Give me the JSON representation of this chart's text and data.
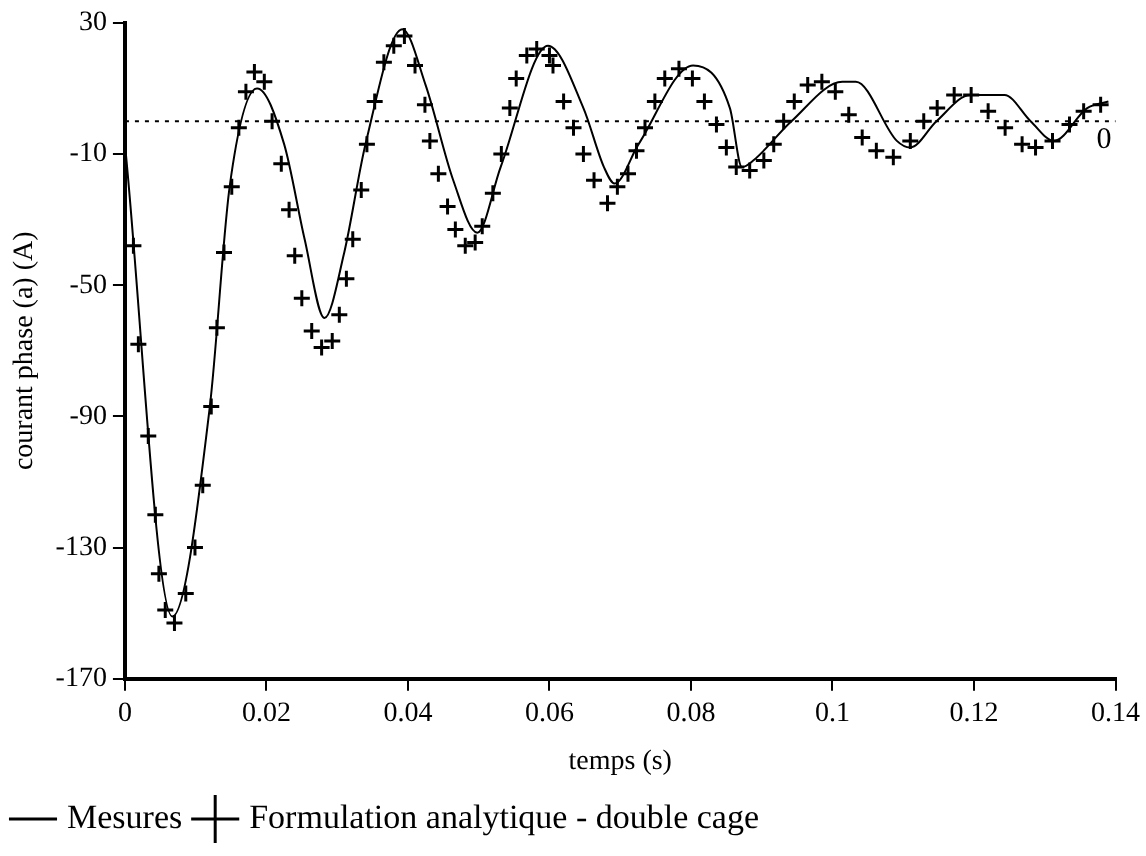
{
  "chart_data": {
    "type": "line",
    "xlabel": "temps (s)",
    "ylabel": "courant phase (a) (A)",
    "xlim": [
      0,
      0.14
    ],
    "xticks": [
      0,
      0.02,
      0.04,
      0.06,
      0.08,
      {
        "value": 0.1,
        "label": "0.1"
      },
      0.12,
      0.14
    ],
    "ylim": [
      -170,
      30
    ],
    "yticks": [
      30,
      -10,
      -50,
      -90,
      -130,
      -170
    ],
    "grid": false,
    "legend": "bottom",
    "ref_lines": [
      {
        "axis": "y",
        "value": 0,
        "label": "0",
        "line_style": "dotted"
      }
    ],
    "series": [
      {
        "name": "Mesures",
        "color": "#000000",
        "marker": "none",
        "line_style": "solid",
        "x": [
          0,
          0.0067,
          0.012,
          0.0148,
          0.0187,
          0.0225,
          0.0254,
          0.0282,
          0.031,
          0.034,
          0.0392,
          0.0425,
          0.0464,
          0.0498,
          0.0531,
          0.0598,
          0.0648,
          0.0677,
          0.0692,
          0.0726,
          0.0803,
          0.0855,
          0.0872,
          0.0888,
          0.0942,
          0.1014,
          0.1033,
          0.1091,
          0.111,
          0.1147,
          0.1195,
          0.1243,
          0.128,
          0.1313,
          0.136,
          0.139
        ],
        "values": [
          -7,
          -151,
          -87,
          -20,
          10,
          -7,
          -36,
          -60,
          -40,
          -7,
          28,
          11,
          -18,
          -34,
          -14,
          23,
          4,
          -14,
          -19,
          -7,
          17,
          4,
          -14,
          -12,
          0,
          12,
          12,
          -6,
          -8,
          0,
          8,
          8,
          0,
          -6,
          4,
          6
        ]
      },
      {
        "name": "Formulation analytique - double cage",
        "type": "scatter",
        "color": "#000000",
        "marker": "cross",
        "x": [
          0.0012,
          0.0019,
          0.0033,
          0.0043,
          0.0048,
          0.0057,
          0.007,
          0.0086,
          0.0099,
          0.011,
          0.0122,
          0.013,
          0.014,
          0.0151,
          0.0161,
          0.0171,
          0.0183,
          0.0197,
          0.0208,
          0.0221,
          0.0232,
          0.024,
          0.025,
          0.0264,
          0.0278,
          0.0293,
          0.0303,
          0.0313,
          0.0322,
          0.0334,
          0.0342,
          0.0353,
          0.0366,
          0.038,
          0.0395,
          0.041,
          0.0424,
          0.0431,
          0.0443,
          0.0456,
          0.0467,
          0.0481,
          0.0495,
          0.0505,
          0.052,
          0.0532,
          0.0544,
          0.0553,
          0.0568,
          0.0582,
          0.06,
          0.0605,
          0.062,
          0.0634,
          0.0648,
          0.0663,
          0.0682,
          0.0696,
          0.0711,
          0.0723,
          0.0735,
          0.0749,
          0.0763,
          0.0783,
          0.0802,
          0.0819,
          0.0836,
          0.085,
          0.0864,
          0.0883,
          0.0903,
          0.0917,
          0.0931,
          0.0946,
          0.0965,
          0.0985,
          0.1004,
          0.1023,
          0.1042,
          0.1062,
          0.1086,
          0.111,
          0.1129,
          0.1148,
          0.1172,
          0.1196,
          0.122,
          0.1244,
          0.1268,
          0.1287,
          0.1311,
          0.1335,
          0.1355,
          0.1379
        ],
        "values": [
          -38,
          -68,
          -96,
          -120,
          -138,
          -149,
          -153,
          -144,
          -130,
          -111,
          -87,
          -63,
          -40,
          -20,
          -2,
          9,
          15,
          12,
          0,
          -13,
          -27,
          -41,
          -54,
          -64,
          -69,
          -67,
          -59,
          -48,
          -36,
          -21,
          -7,
          6,
          18,
          23,
          26,
          17,
          5,
          -6,
          -16,
          -26,
          -33,
          -38,
          -37,
          -32,
          -22,
          -10,
          4,
          13,
          20,
          22,
          20,
          17,
          6,
          -2,
          -10,
          -18,
          -25,
          -20,
          -16,
          -9,
          -2,
          6,
          13,
          16,
          13,
          6,
          -1,
          -8,
          -14,
          -15,
          -12,
          -7,
          0,
          6,
          11,
          12,
          9,
          2,
          -5,
          -9,
          -11,
          -6,
          0,
          4,
          8,
          8,
          3,
          -2,
          -7,
          -8,
          -6,
          -1,
          3,
          5
        ]
      }
    ]
  }
}
